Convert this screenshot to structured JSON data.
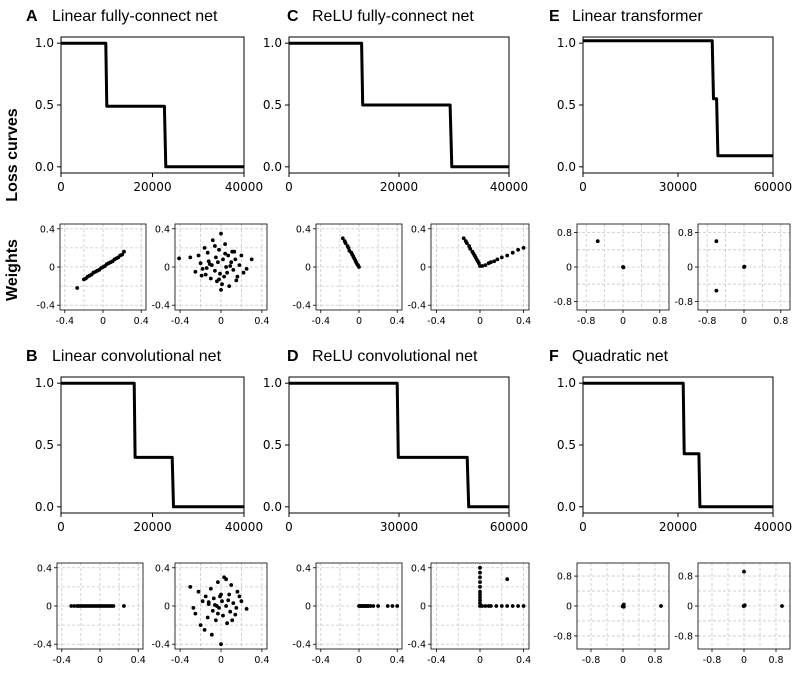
{
  "row_labels": {
    "loss": "Loss curves",
    "weights": "Weights"
  },
  "chart_data": [
    {
      "id": "A",
      "letter": "A",
      "title": "Linear fully-connect net",
      "type": "line",
      "xlim": [
        0,
        40000
      ],
      "ylim": [
        0,
        1
      ],
      "xticks": [
        0,
        20000,
        40000
      ],
      "yticks": [
        "0.0",
        "0.5",
        "1.0"
      ],
      "x": [
        0,
        9800,
        10000,
        22600,
        22900,
        40000
      ],
      "y": [
        1.0,
        1.0,
        0.49,
        0.49,
        0.0,
        0.0
      ],
      "grid": false
    },
    {
      "id": "C",
      "letter": "C",
      "title": "ReLU fully-connect net",
      "type": "line",
      "xlim": [
        0,
        40000
      ],
      "ylim": [
        0,
        1
      ],
      "xticks": [
        0,
        20000,
        40000
      ],
      "yticks": [
        "0.0",
        "0.5",
        "1.0"
      ],
      "x": [
        0,
        13200,
        13400,
        29300,
        29600,
        40000
      ],
      "y": [
        1.0,
        1.0,
        0.5,
        0.5,
        0.0,
        0.0
      ],
      "grid": false
    },
    {
      "id": "E",
      "letter": "E",
      "title": "Linear transformer",
      "type": "line",
      "xlim": [
        0,
        60000
      ],
      "ylim": [
        0,
        1
      ],
      "xticks": [
        0,
        30000,
        60000
      ],
      "yticks": [
        "0.0",
        "0.5",
        "1.0"
      ],
      "x": [
        0,
        40800,
        41200,
        42200,
        42600,
        60000
      ],
      "y": [
        1.02,
        1.02,
        0.55,
        0.55,
        0.09,
        0.09
      ],
      "grid": false
    },
    {
      "id": "B",
      "letter": "B",
      "title": "Linear convolutional net",
      "type": "line",
      "xlim": [
        0,
        40000
      ],
      "ylim": [
        0,
        1
      ],
      "xticks": [
        0,
        20000,
        40000
      ],
      "yticks": [
        "0.0",
        "0.5",
        "1.0"
      ],
      "x": [
        0,
        16000,
        16200,
        24300,
        24600,
        40000
      ],
      "y": [
        1.0,
        1.0,
        0.4,
        0.4,
        0.0,
        0.0
      ],
      "grid": false
    },
    {
      "id": "D",
      "letter": "D",
      "title": "ReLU convolutional net",
      "type": "line",
      "xlim": [
        0,
        60000
      ],
      "ylim": [
        0,
        1
      ],
      "xticks": [
        0,
        30000,
        60000
      ],
      "yticks": [
        "0.0",
        "0.5",
        "1.0"
      ],
      "x": [
        0,
        29500,
        29800,
        48600,
        49000,
        60000
      ],
      "y": [
        1.0,
        1.0,
        0.4,
        0.4,
        0.0,
        0.0
      ],
      "grid": false
    },
    {
      "id": "F",
      "letter": "F",
      "title": "Quadratic net",
      "type": "line",
      "xlim": [
        0,
        40000
      ],
      "ylim": [
        0,
        1
      ],
      "xticks": [
        0,
        20000,
        40000
      ],
      "yticks": [
        "0.0",
        "0.5",
        "1.0"
      ],
      "x": [
        0,
        21100,
        21300,
        24400,
        24600,
        40000
      ],
      "y": [
        1.0,
        1.0,
        0.43,
        0.43,
        0.0,
        0.0
      ],
      "grid": false
    },
    {
      "id": "A-w1",
      "type": "scatter",
      "xlim": [
        -0.45,
        0.45
      ],
      "ylim": [
        -0.45,
        0.45
      ],
      "xticks": [
        "-0.4",
        "0",
        "0.4"
      ],
      "yticks": [
        "-0.4",
        "0",
        "0.4"
      ],
      "grid": true,
      "x": [
        -0.27,
        -0.2,
        -0.18,
        -0.16,
        -0.14,
        -0.12,
        -0.1,
        -0.08,
        -0.06,
        -0.04,
        -0.02,
        0.0,
        0.02,
        0.04,
        0.06,
        0.08,
        0.1,
        0.12,
        0.14,
        0.16,
        0.18,
        0.2,
        0.22
      ],
      "y": [
        -0.22,
        -0.13,
        -0.12,
        -0.1,
        -0.09,
        -0.08,
        -0.06,
        -0.05,
        -0.04,
        -0.03,
        -0.01,
        0.0,
        0.01,
        0.03,
        0.04,
        0.05,
        0.06,
        0.08,
        0.09,
        0.1,
        0.12,
        0.13,
        0.16
      ]
    },
    {
      "id": "A-w2",
      "type": "scatter",
      "xlim": [
        -0.45,
        0.45
      ],
      "ylim": [
        -0.45,
        0.45
      ],
      "xticks": [
        "-0.4",
        "0",
        "0.4"
      ],
      "yticks": [
        "-0.4",
        "0",
        "0.4"
      ],
      "grid": true,
      "x": [
        -0.41,
        -0.3,
        -0.25,
        -0.22,
        -0.2,
        -0.18,
        -0.16,
        -0.15,
        -0.13,
        -0.12,
        -0.1,
        -0.09,
        -0.08,
        -0.06,
        -0.05,
        -0.04,
        -0.03,
        -0.02,
        -0.01,
        0.0,
        0.01,
        0.02,
        0.03,
        0.04,
        0.05,
        0.06,
        0.07,
        0.08,
        0.1,
        0.11,
        0.12,
        0.14,
        0.16,
        0.18,
        0.2,
        0.25,
        0.3,
        -0.14,
        0.0,
        -0.06,
        0.09,
        -0.02,
        0.13,
        -0.19,
        0.22,
        0.04,
        -0.11,
        0.15
      ],
      "y": [
        0.09,
        0.1,
        -0.05,
        0.12,
        0.04,
        -0.02,
        0.2,
        -0.08,
        0.15,
        0.06,
        -0.12,
        0.02,
        0.28,
        -0.04,
        0.1,
        -0.15,
        0.05,
        0.18,
        -0.07,
        0.35,
        -0.18,
        0.08,
        -0.1,
        0.14,
        0.0,
        -0.06,
        0.12,
        -0.2,
        0.05,
        0.16,
        -0.03,
        0.08,
        -0.1,
        0.02,
        0.12,
        -0.02,
        0.08,
        -0.01,
        -0.24,
        0.22,
        0.01,
        -0.13,
        0.16,
        -0.09,
        -0.06,
        0.24,
        0.03,
        -0.14
      ]
    },
    {
      "id": "C-w1",
      "type": "scatter",
      "xlim": [
        -0.45,
        0.45
      ],
      "ylim": [
        -0.45,
        0.45
      ],
      "xticks": [
        "-0.4",
        "0",
        "0.4"
      ],
      "yticks": [
        "-0.4",
        "0",
        "0.4"
      ],
      "grid": true,
      "x": [
        -0.17,
        -0.15,
        -0.14,
        -0.12,
        -0.11,
        -0.1,
        -0.08,
        -0.07,
        -0.06,
        -0.05,
        -0.04,
        -0.03,
        -0.02,
        -0.01,
        0.0
      ],
      "y": [
        0.3,
        0.27,
        0.25,
        0.22,
        0.2,
        0.17,
        0.15,
        0.13,
        0.11,
        0.09,
        0.07,
        0.05,
        0.03,
        0.02,
        0.0
      ]
    },
    {
      "id": "C-w2",
      "type": "scatter",
      "xlim": [
        -0.45,
        0.45
      ],
      "ylim": [
        -0.45,
        0.45
      ],
      "xticks": [
        "-0.4",
        "0",
        "0.4"
      ],
      "yticks": [
        "-0.4",
        "0",
        "0.4"
      ],
      "grid": true,
      "x": [
        -0.15,
        -0.13,
        -0.12,
        -0.1,
        -0.09,
        -0.07,
        -0.06,
        -0.05,
        -0.04,
        -0.03,
        -0.02,
        -0.01,
        0.0,
        0.02,
        0.05,
        0.08,
        0.1,
        0.13,
        0.16,
        0.2,
        0.25,
        0.3,
        0.35,
        0.4
      ],
      "y": [
        0.3,
        0.27,
        0.25,
        0.22,
        0.19,
        0.16,
        0.14,
        0.12,
        0.1,
        0.08,
        0.06,
        0.04,
        0.01,
        0.01,
        0.02,
        0.04,
        0.05,
        0.06,
        0.08,
        0.1,
        0.12,
        0.15,
        0.18,
        0.2
      ]
    },
    {
      "id": "E-w1",
      "type": "scatter",
      "xlim": [
        -1.0,
        1.0
      ],
      "ylim": [
        -1.0,
        1.0
      ],
      "xticks": [
        "-0.8",
        "0",
        "0.8"
      ],
      "yticks": [
        "-0.8",
        "0",
        "0.8"
      ],
      "grid": true,
      "x": [
        -0.55,
        0.0,
        0.01
      ],
      "y": [
        0.6,
        0.0,
        -0.01
      ]
    },
    {
      "id": "E-w2",
      "type": "scatter",
      "xlim": [
        -1.0,
        1.0
      ],
      "ylim": [
        -1.0,
        1.0
      ],
      "xticks": [
        "-0.8",
        "0",
        "0.8"
      ],
      "yticks": [
        "-0.8",
        "0",
        "0.8"
      ],
      "grid": true,
      "x": [
        -0.6,
        -0.6,
        0.0,
        0.01
      ],
      "y": [
        0.6,
        -0.55,
        0.0,
        0.01
      ]
    },
    {
      "id": "B-w1",
      "type": "scatter",
      "xlim": [
        -0.45,
        0.45
      ],
      "ylim": [
        -0.45,
        0.45
      ],
      "xticks": [
        "-0.4",
        "0",
        "0.4"
      ],
      "yticks": [
        "-0.4",
        "0",
        "0.4"
      ],
      "grid": true,
      "x": [
        -0.3,
        -0.27,
        -0.24,
        -0.22,
        -0.2,
        -0.18,
        -0.16,
        -0.14,
        -0.12,
        -0.1,
        -0.08,
        -0.06,
        -0.04,
        -0.02,
        0.0,
        0.02,
        0.04,
        0.06,
        0.08,
        0.1,
        0.12,
        0.14,
        0.25
      ],
      "y": [
        0,
        0,
        0,
        0,
        0,
        0,
        0,
        0,
        0,
        0,
        0,
        0,
        0,
        0,
        0,
        0,
        0,
        0,
        0,
        0,
        0,
        0,
        0
      ]
    },
    {
      "id": "B-w2",
      "type": "scatter",
      "xlim": [
        -0.45,
        0.45
      ],
      "ylim": [
        -0.45,
        0.45
      ],
      "xticks": [
        "-0.4",
        "0",
        "0.4"
      ],
      "yticks": [
        "-0.4",
        "0",
        "0.4"
      ],
      "grid": true,
      "x": [
        -0.3,
        -0.25,
        -0.22,
        -0.2,
        -0.18,
        -0.15,
        -0.13,
        -0.12,
        -0.1,
        -0.08,
        -0.07,
        -0.05,
        -0.04,
        -0.03,
        -0.02,
        -0.01,
        0.0,
        0.01,
        0.02,
        0.03,
        0.05,
        0.06,
        0.08,
        0.09,
        0.1,
        0.12,
        0.14,
        0.16,
        0.2,
        0.25,
        -0.27,
        0.05,
        -0.16,
        0.18,
        0.0,
        -0.09,
        0.11,
        -0.03,
        0.07,
        -0.12,
        0.15,
        -0.06
      ],
      "y": [
        0.2,
        -0.08,
        0.15,
        -0.2,
        0.05,
        0.1,
        -0.12,
        0.02,
        0.18,
        -0.05,
        0.08,
        -0.15,
        0.0,
        0.25,
        -0.02,
        0.1,
        -0.4,
        0.05,
        -0.1,
        0.3,
        0.0,
        -0.18,
        0.12,
        -0.06,
        0.22,
        0.03,
        -0.09,
        0.15,
        0.05,
        -0.03,
        -0.02,
        0.28,
        -0.25,
        0.1,
        0.12,
        -0.3,
        -0.15,
        -0.08,
        0.06,
        0.04,
        -0.02,
        0.01
      ]
    },
    {
      "id": "D-w1",
      "type": "scatter",
      "xlim": [
        -0.45,
        0.45
      ],
      "ylim": [
        -0.45,
        0.45
      ],
      "xticks": [
        "-0.4",
        "0",
        "0.4"
      ],
      "yticks": [
        "-0.4",
        "0",
        "0.4"
      ],
      "grid": true,
      "x": [
        0.0,
        0.01,
        0.02,
        0.03,
        0.04,
        0.05,
        0.06,
        0.07,
        0.08,
        0.09,
        0.1,
        0.12,
        0.15,
        0.2,
        0.3,
        0.35,
        0.4
      ],
      "y": [
        0,
        0,
        0,
        0,
        0,
        0,
        0,
        0,
        0,
        0,
        0,
        0,
        0,
        0,
        0,
        0,
        0
      ]
    },
    {
      "id": "D-w2",
      "type": "scatter",
      "xlim": [
        -0.45,
        0.45
      ],
      "ylim": [
        -0.45,
        0.45
      ],
      "xticks": [
        "-0.4",
        "0",
        "0.4"
      ],
      "yticks": [
        "-0.4",
        "0",
        "0.4"
      ],
      "grid": true,
      "x": [
        0.0,
        0.0,
        0.0,
        0.0,
        0.0,
        0.0,
        0.0,
        0.0,
        0.0,
        0.0,
        0.0,
        0.02,
        0.05,
        0.08,
        0.1,
        0.15,
        0.2,
        0.25,
        0.3,
        0.35,
        0.4,
        0.25
      ],
      "y": [
        0.4,
        0.35,
        0.3,
        0.25,
        0.2,
        0.15,
        0.12,
        0.09,
        0.06,
        0.03,
        0.0,
        0.0,
        0.0,
        0.0,
        0.0,
        0.0,
        0.0,
        0.0,
        0.0,
        0.0,
        0.0,
        0.28
      ]
    },
    {
      "id": "F-w1",
      "type": "scatter",
      "xlim": [
        -1.15,
        1.15
      ],
      "ylim": [
        -1.15,
        1.15
      ],
      "xticks": [
        "-0.8",
        "0",
        "0.8"
      ],
      "yticks": [
        "-0.8",
        "0",
        "0.8"
      ],
      "grid": true,
      "x": [
        0.0,
        0.01,
        -0.01,
        0.02,
        0.02,
        0.95
      ],
      "y": [
        0.0,
        0.02,
        -0.01,
        0.04,
        -0.02,
        0.0
      ]
    },
    {
      "id": "F-w2",
      "type": "scatter",
      "xlim": [
        -1.15,
        1.15
      ],
      "ylim": [
        -1.15,
        1.15
      ],
      "xticks": [
        "-0.8",
        "0",
        "0.8"
      ],
      "yticks": [
        "-0.8",
        "0",
        "0.8"
      ],
      "grid": true,
      "x": [
        0.0,
        0.01,
        -0.01,
        0.02,
        0.0,
        0.95
      ],
      "y": [
        0.0,
        0.01,
        0.0,
        0.02,
        0.92,
        0.0
      ]
    }
  ]
}
